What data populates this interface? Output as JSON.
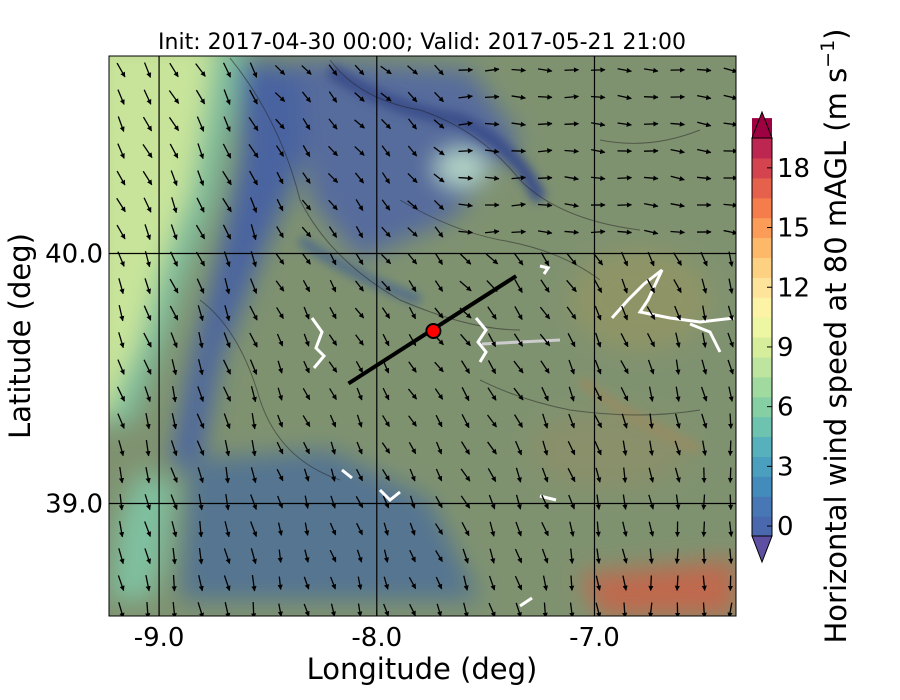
{
  "chart_data": {
    "type": "heatmap",
    "title": "Init: 2017-04-30 00:00; Valid: 2017-05-21 21:00",
    "xlabel": "Longitude (deg)",
    "ylabel": "Latitude (deg)",
    "xlim": [
      -9.23,
      -6.35
    ],
    "ylim": [
      38.55,
      40.79
    ],
    "xticks": [
      {
        "value": -9.0,
        "label": "-9.0"
      },
      {
        "value": -8.0,
        "label": "-8.0"
      },
      {
        "value": -7.0,
        "label": "-7.0"
      }
    ],
    "yticks": [
      {
        "value": 40.0,
        "label": "40.0"
      },
      {
        "value": 39.0,
        "label": "39.0"
      }
    ],
    "grid": true,
    "colorbar": {
      "label_main": "Horizontal wind speed at 80 mAGL (m s",
      "label_exp": "−1",
      "label_close": ")",
      "min": 0,
      "max": 20,
      "step": 1,
      "ticks": [
        {
          "value": 0,
          "label": "0"
        },
        {
          "value": 3,
          "label": "3"
        },
        {
          "value": 6,
          "label": "6"
        },
        {
          "value": 9,
          "label": "9"
        },
        {
          "value": 12,
          "label": "12"
        },
        {
          "value": 15,
          "label": "15"
        },
        {
          "value": 18,
          "label": "18"
        }
      ],
      "colors": [
        "#4a68ae",
        "#4778b5",
        "#438bbb",
        "#4a9ebe",
        "#56b1bd",
        "#6dc3b0",
        "#86cfa4",
        "#a0da9e",
        "#bde5a0",
        "#d6ee9c",
        "#edf6a3",
        "#fdf3a7",
        "#fee49b",
        "#fdd181",
        "#fdb969",
        "#fb9c58",
        "#f57d4b",
        "#e5614c",
        "#d4444f",
        "#bd2650",
        "#9e0142"
      ],
      "under_color": "#5e4fa2",
      "over_color": "#9e0142"
    },
    "cross_section_line": {
      "start": [
        -8.13,
        39.48
      ],
      "end": [
        -7.36,
        39.91
      ]
    },
    "site_marker": {
      "lon": -7.74,
      "lat": 39.69,
      "color": "#ff0000"
    }
  }
}
